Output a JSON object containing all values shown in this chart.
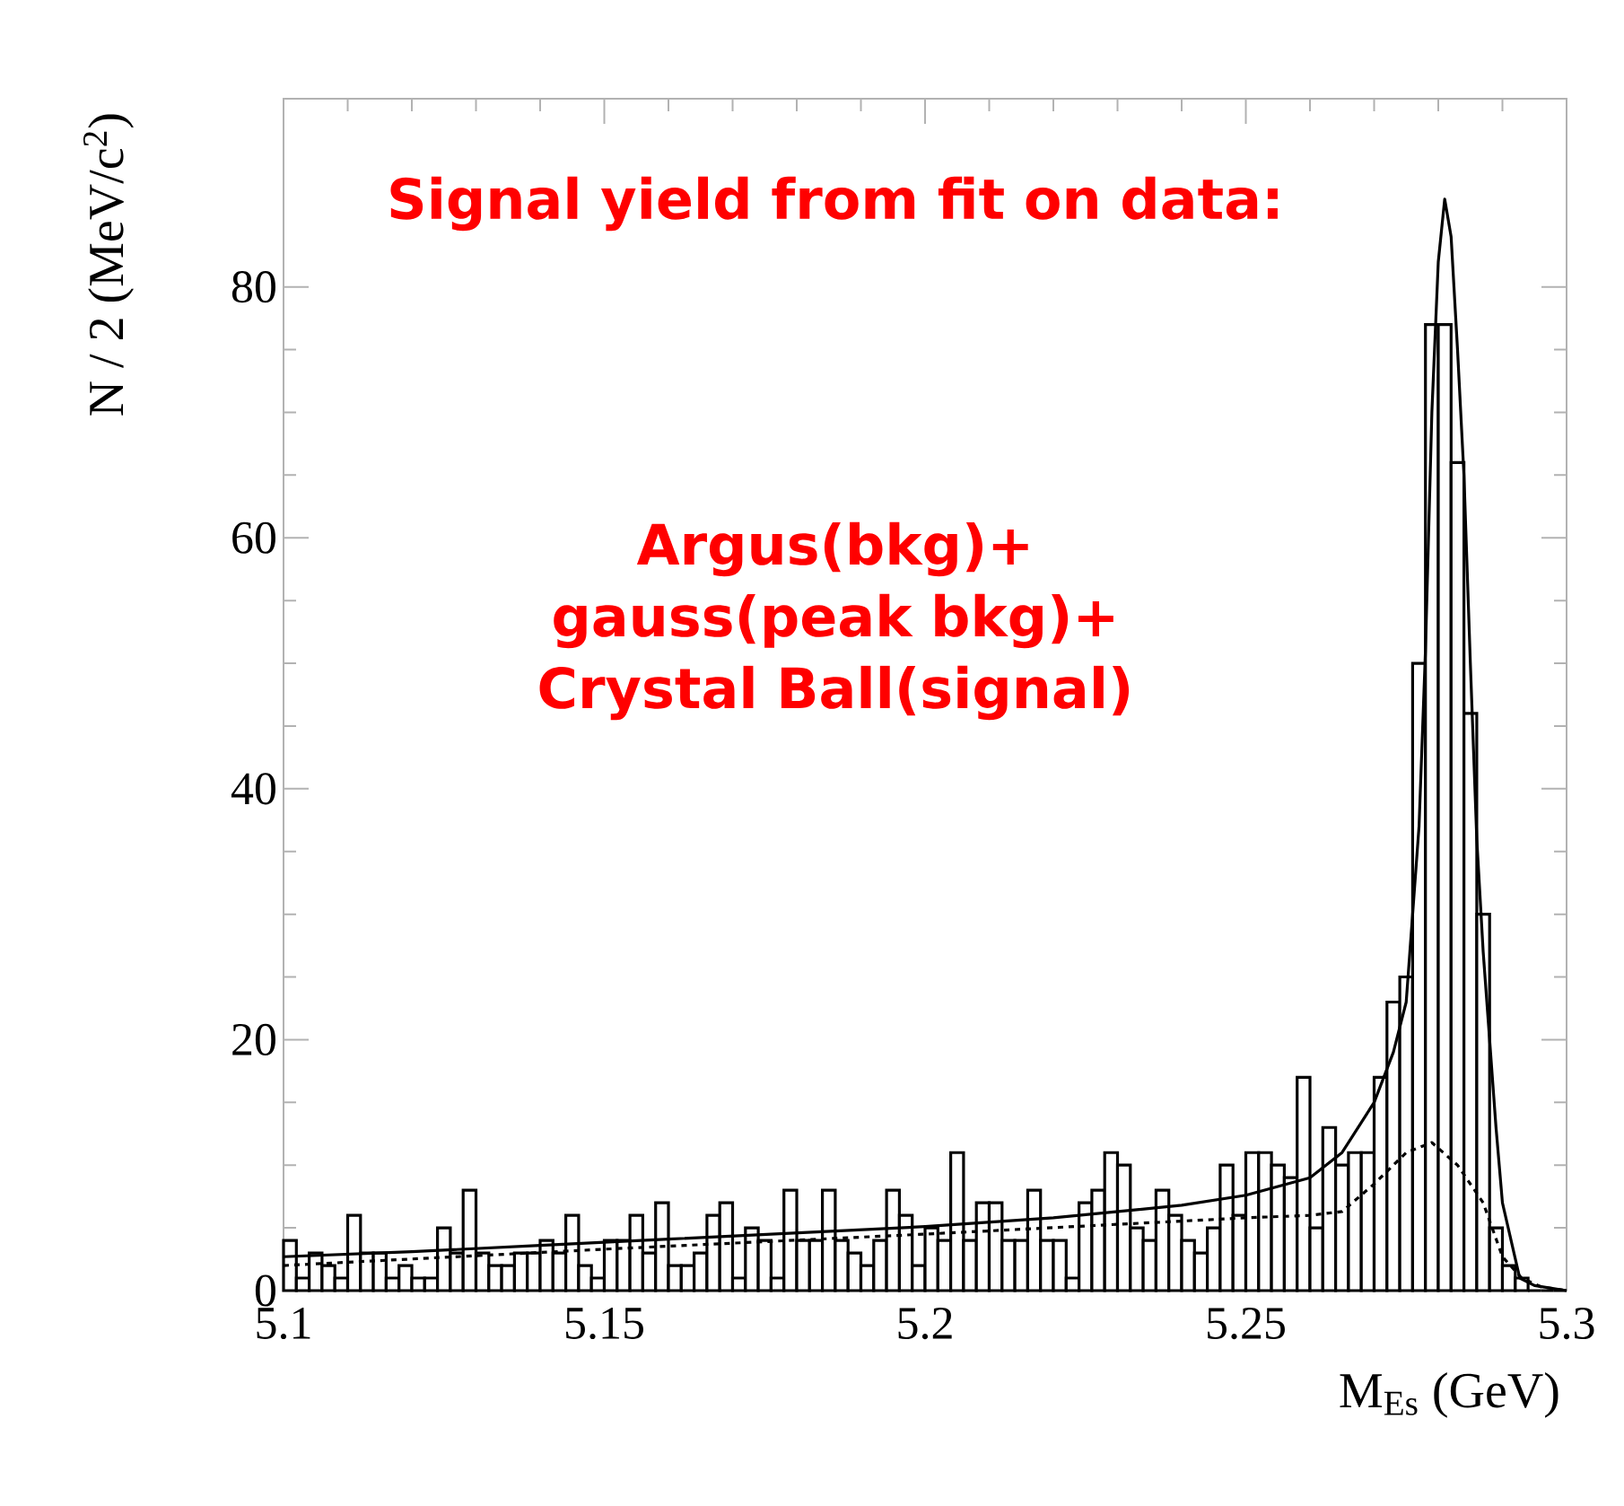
{
  "chart_data": {
    "type": "histogram",
    "xlabel": "M$_{Es}$ (GeV)",
    "ylabel": "N / 2 (MeV/c$^{2}$)",
    "annotations": [
      "Signal yield from fit on data:",
      "Argus(bkg)+ gauss(peak bkg)+ Crystal Ball(signal)"
    ],
    "bins": [
      5.1,
      5.102,
      5.104,
      5.106,
      5.108,
      5.11,
      5.112,
      5.114,
      5.116,
      5.118,
      5.12,
      5.122,
      5.124,
      5.126,
      5.128,
      5.13,
      5.132,
      5.134,
      5.136,
      5.138,
      5.14,
      5.142,
      5.144,
      5.146,
      5.148,
      5.15,
      5.152,
      5.154,
      5.156,
      5.158,
      5.16,
      5.162,
      5.164,
      5.166,
      5.168,
      5.17,
      5.172,
      5.174,
      5.176,
      5.178,
      5.18,
      5.182,
      5.184,
      5.186,
      5.188,
      5.19,
      5.192,
      5.194,
      5.196,
      5.198,
      5.2,
      5.202,
      5.204,
      5.206,
      5.208,
      5.21,
      5.212,
      5.214,
      5.216,
      5.218,
      5.22,
      5.222,
      5.224,
      5.226,
      5.228,
      5.23,
      5.232,
      5.234,
      5.236,
      5.238,
      5.24,
      5.242,
      5.244,
      5.246,
      5.248,
      5.25,
      5.252,
      5.254,
      5.256,
      5.258,
      5.26,
      5.262,
      5.264,
      5.266,
      5.268,
      5.27,
      5.272,
      5.274,
      5.276,
      5.278,
      5.28,
      5.282,
      5.284,
      5.286,
      5.288,
      5.29,
      5.292,
      5.294,
      5.296,
      5.298,
      5.3
    ],
    "values": [
      4,
      1,
      3,
      2,
      1,
      6,
      3,
      3,
      1,
      2,
      1,
      1,
      5,
      3,
      8,
      3,
      2,
      2,
      3,
      3,
      4,
      3,
      6,
      2,
      1,
      4,
      4,
      6,
      3,
      7,
      2,
      2,
      3,
      6,
      7,
      1,
      5,
      4,
      1,
      8,
      4,
      4,
      8,
      4,
      3,
      2,
      4,
      8,
      6,
      2,
      5,
      4,
      11,
      4,
      7,
      7,
      4,
      4,
      8,
      4,
      4,
      1,
      7,
      8,
      11,
      10,
      5,
      4,
      8,
      6,
      4,
      3,
      5,
      10,
      6,
      11,
      11,
      10,
      9,
      17,
      5,
      13,
      10,
      11,
      11,
      17,
      23,
      25,
      50,
      77,
      77,
      66,
      46,
      30,
      5,
      2,
      1,
      0,
      0,
      0
    ],
    "color": "#000000",
    "series": [
      {
        "type": "line",
        "line_style": "solid",
        "color": "#000000",
        "x": [
          5.1,
          5.12,
          5.14,
          5.16,
          5.18,
          5.2,
          5.22,
          5.24,
          5.25,
          5.26,
          5.265,
          5.27,
          5.273,
          5.275,
          5.277,
          5.278,
          5.279,
          5.28,
          5.281,
          5.282,
          5.283,
          5.284,
          5.285,
          5.286,
          5.287,
          5.288,
          5.289,
          5.29,
          5.2927,
          5.295,
          5.3
        ],
        "values": [
          2.7,
          3.1,
          3.6,
          4.1,
          4.6,
          5.1,
          5.8,
          6.8,
          7.6,
          9,
          11,
          15,
          19,
          23,
          37,
          51,
          70,
          82,
          87,
          84,
          75,
          65,
          50,
          36,
          27,
          20,
          13,
          7,
          1,
          0.4,
          0
        ]
      },
      {
        "type": "line",
        "line_style": "dashed",
        "color": "#000000",
        "x": [
          5.1,
          5.15,
          5.2,
          5.25,
          5.26,
          5.265,
          5.27,
          5.275,
          5.279,
          5.283,
          5.287,
          5.29,
          5.293,
          5.296,
          5.3
        ],
        "values": [
          2,
          3.3,
          4.5,
          5.8,
          6,
          6.3,
          8.5,
          11,
          11.8,
          10,
          7,
          2.7,
          1,
          0.3,
          0
        ]
      }
    ],
    "xlim": [
      5.1,
      5.3
    ],
    "ylim": [
      0,
      95
    ],
    "xticks": [
      5.1,
      5.15,
      5.2,
      5.25,
      5.3
    ],
    "yticks": [
      0,
      20,
      40,
      60,
      80
    ]
  }
}
